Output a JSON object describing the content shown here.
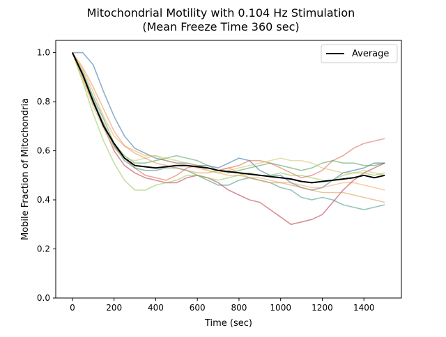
{
  "chart_data": {
    "type": "line",
    "title": "Mitochondrial Motility with 0.104 Hz Stimulation",
    "subtitle": "(Mean Freeze Time 360 sec)",
    "xlabel": "Time (sec)",
    "ylabel": "Mobile Fraction of Mitochondria",
    "xlim": [
      -80,
      1580
    ],
    "ylim": [
      0.0,
      1.05
    ],
    "xticks": [
      "0",
      "200",
      "400",
      "600",
      "800",
      "1000",
      "1200",
      "1400"
    ],
    "yticks": [
      "0.0",
      "0.2",
      "0.4",
      "0.6",
      "0.8",
      "1.0"
    ],
    "grid": false,
    "legend": {
      "placement": "top-right",
      "entries": [
        "Average"
      ]
    },
    "x": [
      0,
      50,
      100,
      150,
      200,
      250,
      300,
      350,
      400,
      450,
      500,
      550,
      600,
      650,
      700,
      750,
      800,
      850,
      900,
      950,
      1000,
      1050,
      1100,
      1150,
      1200,
      1250,
      1300,
      1350,
      1400,
      1450,
      1500
    ],
    "series": [
      {
        "color": "#1f5f99",
        "values": [
          1.0,
          1.0,
          0.95,
          0.84,
          0.74,
          0.66,
          0.61,
          0.59,
          0.57,
          0.56,
          0.55,
          0.55,
          0.54,
          0.54,
          0.53,
          0.55,
          0.57,
          0.56,
          0.52,
          0.5,
          0.5,
          0.47,
          0.45,
          0.44,
          0.45,
          0.48,
          0.51,
          0.52,
          0.53,
          0.55,
          0.55
        ]
      },
      {
        "color": "#f0a050",
        "values": [
          1.0,
          0.93,
          0.84,
          0.74,
          0.66,
          0.62,
          0.6,
          0.58,
          0.58,
          0.56,
          0.55,
          0.54,
          0.53,
          0.52,
          0.51,
          0.5,
          0.5,
          0.49,
          0.49,
          0.48,
          0.47,
          0.47,
          0.46,
          0.45,
          0.45,
          0.46,
          0.47,
          0.47,
          0.46,
          0.45,
          0.44
        ]
      },
      {
        "color": "#d94f3a",
        "values": [
          1.0,
          0.9,
          0.79,
          0.71,
          0.62,
          0.57,
          0.53,
          0.5,
          0.49,
          0.48,
          0.5,
          0.53,
          0.54,
          0.53,
          0.52,
          0.53,
          0.54,
          0.56,
          0.56,
          0.55,
          0.53,
          0.51,
          0.49,
          0.5,
          0.52,
          0.56,
          0.58,
          0.61,
          0.63,
          0.64,
          0.65
        ]
      },
      {
        "color": "#b22030",
        "values": [
          1.0,
          0.91,
          0.8,
          0.7,
          0.6,
          0.54,
          0.51,
          0.49,
          0.48,
          0.47,
          0.47,
          0.49,
          0.5,
          0.49,
          0.47,
          0.44,
          0.42,
          0.4,
          0.39,
          0.36,
          0.33,
          0.3,
          0.31,
          0.32,
          0.34,
          0.39,
          0.44,
          0.48,
          0.51,
          0.53,
          0.55
        ]
      },
      {
        "color": "#3a9a40",
        "values": [
          1.0,
          0.92,
          0.82,
          0.73,
          0.63,
          0.58,
          0.55,
          0.55,
          0.56,
          0.57,
          0.58,
          0.57,
          0.56,
          0.54,
          0.52,
          0.51,
          0.52,
          0.53,
          0.54,
          0.55,
          0.54,
          0.53,
          0.52,
          0.53,
          0.55,
          0.56,
          0.55,
          0.55,
          0.54,
          0.54,
          0.55
        ]
      },
      {
        "color": "#2a8a78",
        "values": [
          1.0,
          0.91,
          0.81,
          0.71,
          0.62,
          0.56,
          0.53,
          0.52,
          0.52,
          0.53,
          0.53,
          0.52,
          0.5,
          0.48,
          0.46,
          0.46,
          0.48,
          0.49,
          0.48,
          0.47,
          0.45,
          0.44,
          0.41,
          0.4,
          0.41,
          0.4,
          0.38,
          0.37,
          0.36,
          0.37,
          0.38
        ]
      },
      {
        "color": "#c9c060",
        "values": [
          1.0,
          0.89,
          0.78,
          0.69,
          0.61,
          0.57,
          0.56,
          0.57,
          0.58,
          0.57,
          0.56,
          0.55,
          0.54,
          0.52,
          0.51,
          0.52,
          0.53,
          0.54,
          0.55,
          0.56,
          0.57,
          0.56,
          0.56,
          0.55,
          0.53,
          0.52,
          0.51,
          0.51,
          0.52,
          0.51,
          0.5
        ]
      },
      {
        "color": "#8cc040",
        "values": [
          1.0,
          0.88,
          0.75,
          0.64,
          0.55,
          0.48,
          0.44,
          0.44,
          0.46,
          0.47,
          0.48,
          0.5,
          0.5,
          0.49,
          0.48,
          0.49,
          0.5,
          0.51,
          0.5,
          0.5,
          0.51,
          0.5,
          0.5,
          0.49,
          0.48,
          0.48,
          0.5,
          0.51,
          0.51,
          0.5,
          0.51
        ]
      },
      {
        "color": "#e08a40",
        "values": [
          1.0,
          0.94,
          0.86,
          0.77,
          0.68,
          0.62,
          0.59,
          0.57,
          0.55,
          0.54,
          0.53,
          0.52,
          0.51,
          0.51,
          0.52,
          0.53,
          0.51,
          0.49,
          0.48,
          0.47,
          0.47,
          0.46,
          0.45,
          0.44,
          0.43,
          0.43,
          0.43,
          0.42,
          0.41,
          0.4,
          0.39
        ]
      },
      {
        "color": "#000000",
        "name": "Average",
        "values": [
          1.0,
          0.91,
          0.8,
          0.7,
          0.63,
          0.57,
          0.54,
          0.535,
          0.53,
          0.535,
          0.54,
          0.54,
          0.535,
          0.53,
          0.52,
          0.515,
          0.51,
          0.505,
          0.5,
          0.495,
          0.49,
          0.485,
          0.475,
          0.47,
          0.475,
          0.48,
          0.485,
          0.49,
          0.5,
          0.49,
          0.5
        ]
      }
    ]
  }
}
